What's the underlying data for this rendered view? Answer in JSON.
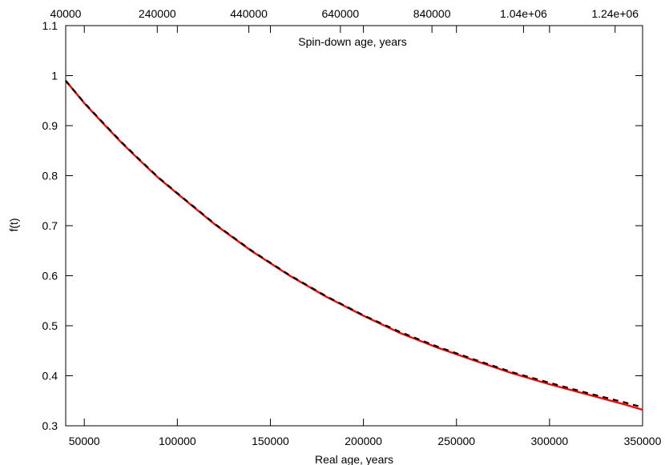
{
  "chart_data": {
    "type": "line",
    "title": "",
    "xlabel": "Real age, years",
    "ylabel": "f(t)",
    "x2label": "Spin-down age, years",
    "xlim": [
      40000,
      350000
    ],
    "ylim": [
      0.3,
      1.1
    ],
    "x2lim": [
      40000,
      1300000
    ],
    "x_ticks": [
      50000,
      100000,
      150000,
      200000,
      250000,
      300000,
      350000
    ],
    "x_tick_labels": [
      "50000",
      "100000",
      "150000",
      "200000",
      "250000",
      "300000",
      "350000"
    ],
    "y_ticks": [
      0.3,
      0.4,
      0.5,
      0.6,
      0.7,
      0.8,
      0.9,
      1.0,
      1.1
    ],
    "y_tick_labels": [
      "0.3",
      "0.4",
      "0.5",
      "0.6",
      "0.7",
      "0.8",
      "0.9",
      "1",
      "1.1"
    ],
    "x2_ticks": [
      40000,
      240000,
      440000,
      640000,
      840000,
      1040000,
      1240000
    ],
    "x2_tick_labels": [
      "40000",
      "240000",
      "440000",
      "640000",
      "840000",
      "1.04e+06",
      "1.24e+06"
    ],
    "grid": false,
    "legend": "none",
    "series": [
      {
        "style": "solid",
        "color": "#ff0000",
        "x": [
          40000,
          50000,
          60000,
          70000,
          80000,
          90000,
          100000,
          120000,
          140000,
          160000,
          180000,
          200000,
          220000,
          240000,
          260000,
          280000,
          300000,
          320000,
          340000,
          350000
        ],
        "y": [
          0.99,
          0.945,
          0.905,
          0.866,
          0.83,
          0.795,
          0.764,
          0.703,
          0.649,
          0.601,
          0.558,
          0.52,
          0.485,
          0.456,
          0.43,
          0.405,
          0.383,
          0.363,
          0.343,
          0.332
        ]
      },
      {
        "style": "dashed",
        "color": "#000000",
        "x": [
          40000,
          50000,
          60000,
          70000,
          80000,
          90000,
          100000,
          120000,
          140000,
          160000,
          180000,
          200000,
          220000,
          240000,
          260000,
          280000,
          300000,
          320000,
          340000,
          350000
        ],
        "y": [
          0.99,
          0.946,
          0.906,
          0.867,
          0.831,
          0.796,
          0.765,
          0.704,
          0.65,
          0.602,
          0.559,
          0.521,
          0.487,
          0.458,
          0.432,
          0.407,
          0.386,
          0.366,
          0.347,
          0.337
        ]
      }
    ]
  }
}
